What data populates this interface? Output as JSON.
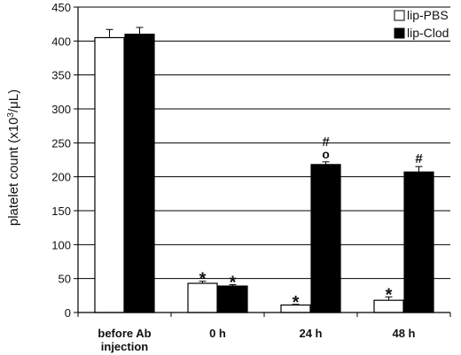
{
  "chart_data": {
    "type": "bar",
    "title": "",
    "xlabel": "",
    "ylabel_main": "platelet count (x10",
    "ylabel_sup": "3",
    "ylabel_tail": "/μL)",
    "ylim": [
      0,
      450
    ],
    "yticks": [
      "0",
      "50",
      "100",
      "150",
      "200",
      "250",
      "300",
      "350",
      "400",
      "450"
    ],
    "grid": "horizontal",
    "legend_position": "top-right",
    "categories": [
      [
        "before Ab",
        "injection"
      ],
      [
        "0 h"
      ],
      [
        "24 h"
      ],
      [
        "48 h"
      ]
    ],
    "series": [
      {
        "name": "lip-PBS",
        "color": "#ffffff",
        "values": [
          405,
          43,
          11,
          18
        ],
        "errors": [
          12,
          3,
          1,
          5
        ],
        "annotations": [
          "",
          "*",
          "*",
          "*"
        ]
      },
      {
        "name": "lip-Clod",
        "color": "#000000",
        "values": [
          410,
          39,
          218,
          207
        ],
        "errors": [
          10,
          2,
          4,
          8
        ],
        "annotations": [
          "",
          "*",
          "#\no",
          "#"
        ]
      }
    ]
  }
}
